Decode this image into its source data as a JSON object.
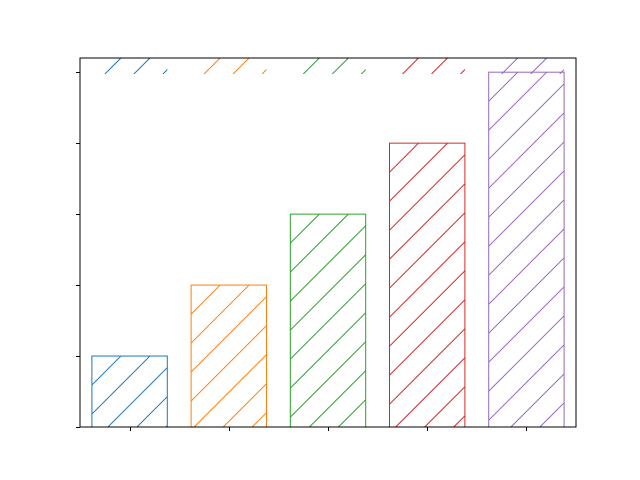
{
  "chart_data": {
    "type": "bar",
    "title": "",
    "xlabel": "",
    "ylabel": "",
    "categories": [
      "",
      "",
      "",
      "",
      ""
    ],
    "values": [
      1,
      2,
      3,
      4,
      5
    ],
    "colors": [
      "#1f77b4",
      "#ff7f0e",
      "#2ca02c",
      "#d62728",
      "#9467bd"
    ],
    "hatch": "forward-diagonal",
    "ylim": [
      0,
      5.2
    ],
    "yticks": [
      0,
      1,
      2,
      3,
      4,
      5
    ],
    "tick_labels_visible": false,
    "grid": false,
    "legend": {
      "placement": "top",
      "entries": [
        {
          "label": "",
          "color": "#1f77b4"
        },
        {
          "label": "",
          "color": "#ff7f0e"
        },
        {
          "label": "",
          "color": "#2ca02c"
        },
        {
          "label": "",
          "color": "#d62728"
        },
        {
          "label": "",
          "color": "#9467bd"
        }
      ]
    }
  }
}
